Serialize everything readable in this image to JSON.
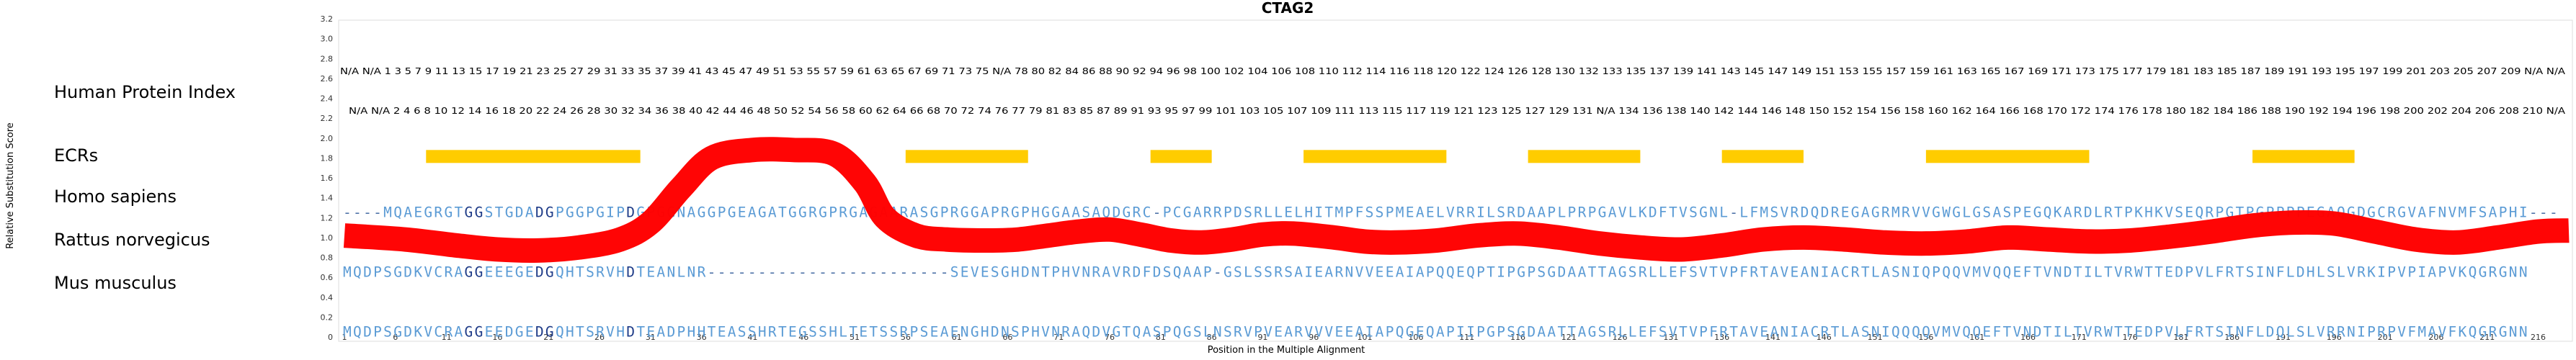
{
  "chart_data": {
    "type": "line",
    "title": "CTAG2",
    "xlabel": "Position in the Multiple Alignment",
    "ylabel": "Relative Substitution Score",
    "ylim": [
      0,
      3.2
    ],
    "yticks": [
      "0",
      "0.2",
      "0.4",
      "0.6",
      "0.8",
      "1.0",
      "1.2",
      "1.4",
      "1.6",
      "1.8",
      "2.0",
      "2.2",
      "2.4",
      "2.6",
      "2.8",
      "3.0",
      "3.2"
    ],
    "xlim": [
      1,
      219
    ],
    "xticks": [
      1,
      6,
      11,
      16,
      21,
      26,
      31,
      36,
      41,
      46,
      51,
      56,
      61,
      66,
      71,
      76,
      81,
      86,
      91,
      96,
      101,
      106,
      111,
      116,
      121,
      126,
      131,
      136,
      141,
      146,
      151,
      156,
      161,
      166,
      171,
      176,
      181,
      186,
      191,
      196,
      201,
      206,
      211,
      216
    ],
    "colors": {
      "line": "#ff0000",
      "ecr": "#ffcc00",
      "conserved": "#1f3c88",
      "variable": "#5b9bd5",
      "gap": "#4a6fa5",
      "green": "#7fae7f"
    },
    "series": [
      {
        "points": [
          [
            1,
            1.02
          ],
          [
            7,
            0.98
          ],
          [
            12,
            0.92
          ],
          [
            16,
            0.88
          ],
          [
            20,
            0.87
          ],
          [
            24,
            0.9
          ],
          [
            28,
            0.98
          ],
          [
            31,
            1.15
          ],
          [
            34,
            1.5
          ],
          [
            37,
            1.8
          ],
          [
            41,
            1.88
          ],
          [
            45,
            1.88
          ],
          [
            49,
            1.84
          ],
          [
            52,
            1.55
          ],
          [
            54,
            1.2
          ],
          [
            57,
            1.02
          ],
          [
            60,
            0.98
          ],
          [
            64,
            0.97
          ],
          [
            67,
            0.98
          ],
          [
            70,
            1.02
          ],
          [
            73,
            1.06
          ],
          [
            76,
            1.08
          ],
          [
            79,
            1.03
          ],
          [
            82,
            0.97
          ],
          [
            85,
            0.95
          ],
          [
            88,
            0.98
          ],
          [
            91,
            1.03
          ],
          [
            94,
            1.04
          ],
          [
            98,
            1.0
          ],
          [
            101,
            0.96
          ],
          [
            104,
            0.95
          ],
          [
            108,
            0.97
          ],
          [
            112,
            1.02
          ],
          [
            116,
            1.04
          ],
          [
            120,
            1.0
          ],
          [
            124,
            0.94
          ],
          [
            128,
            0.9
          ],
          [
            132,
            0.88
          ],
          [
            136,
            0.92
          ],
          [
            140,
            0.98
          ],
          [
            144,
            1.0
          ],
          [
            148,
            0.98
          ],
          [
            152,
            0.95
          ],
          [
            156,
            0.94
          ],
          [
            160,
            0.96
          ],
          [
            164,
            1.0
          ],
          [
            168,
            0.98
          ],
          [
            172,
            0.96
          ],
          [
            176,
            0.97
          ],
          [
            180,
            1.01
          ],
          [
            184,
            1.06
          ],
          [
            188,
            1.12
          ],
          [
            192,
            1.15
          ],
          [
            196,
            1.14
          ],
          [
            200,
            1.06
          ],
          [
            204,
            0.98
          ],
          [
            208,
            0.95
          ],
          [
            212,
            1.0
          ],
          [
            216,
            1.06
          ],
          [
            219,
            1.07
          ]
        ]
      }
    ],
    "ecrs": [
      [
        9,
        30
      ],
      [
        56,
        68
      ],
      [
        80,
        86
      ],
      [
        95,
        109
      ],
      [
        117,
        128
      ],
      [
        136,
        144
      ],
      [
        156,
        172
      ],
      [
        188,
        198
      ]
    ],
    "row_labels": {
      "index": "Human Protein Index",
      "ecrs": "ECRs",
      "homo": "Homo sapiens",
      "rattus": "Rattus norvegicus",
      "mus": "Mus musculus"
    },
    "index_row_1": "N/A N/A 1 3 5 7 9 11 13 15 17 19 21 23 25 27 29 31 33 35 37 39 41 43 45 47 49 51 53 55 57 59 61 63 65 67 69 71 73 75 N/A 78 80 82 84 86 88 90 92 94 96 98 100 102 104 106 108 110 112 114 116 118 120 122 124 126 128 130 132 133 135 137 139 141 143 145 147 149 151 153 155 157 159 161 163 165 167 169 171 173 175 177 179 181 183 185 187 189 191 193 195 197 199 201 203 205 207 209 N/A N/A",
    "index_row_2": "N/A N/A 2 4 6 8 10 12 14 16 18 20 22 24 26 28 30 32 34 36 38 40 42 44 46 48 50 52 54 56 58 60 62 64 66 68 70 72 74 76 77 79 81 83 85 87 89 91 93 95 97 99 101 103 105 107 109 111 113 115 117 119 121 123 125 127 129 131 N/A 134 136 138 140 142 144 146 148 150 152 154 156 158 160 162 164 166 168 170 172 174 176 178 180 182 184 186 188 190 192 194 196 198 200 202 204 206 208 210 N/A",
    "sequences": {
      "homo": "----MQAEGRGTGGSTGDADGPGGPGIPDGPGGNAGGPGEAGATGGRGPRGAGAARASGPRGGAPRGPHGGAASAQDGRC-PCGARRPDSRLLELHITMPFSSPMEAELVRRILSRDAAPLPRPGAVLKDFTVSGNL-LFMSVRDQDREGAGRMRVVGWGLGSASPEGQKARDLRTPKHKVSEQRPGTPGPPPPEGAQGDGCRGVAFNVMFSAPHI---",
      "rattus": "MQDPSGDKVCRAGGEEEGEDGQHTSRVHDTEANLNR------------------------SEVESGHDNTPHVNRAVRDFDSQAAP-GSLSSRSAIEARNVVEEAIAPQQEQPTIPGPSGDAATTAGSRLLEFSVTVPFRTAVEANIACRTLASNIQPQQVMVQQEFTVNDTILTVRWTTEDPVLFRTSINFLDHLSLVRKIPVPIAPVKQGRGNN",
      "mus": "MQDPSGDKVCRAGGEEDGEDGQHTSRVHDTEADPHHTEASSHRTEGSSHLTETSSRPSEAENGHDNSPHVNRAQDVGTQASPQGSLNSRVPVEARVVVEEAIAPQGEQAPIIPGPSGDAATTAGSRLLEFSVTVPFRTAVEANIACRTLASNIQQQQVMVQQEFTVNDTILTVRWTTEDPVLFRTSINFLDQLSLVRRNIPRPVFMAVFKQGRGNN"
    }
  }
}
